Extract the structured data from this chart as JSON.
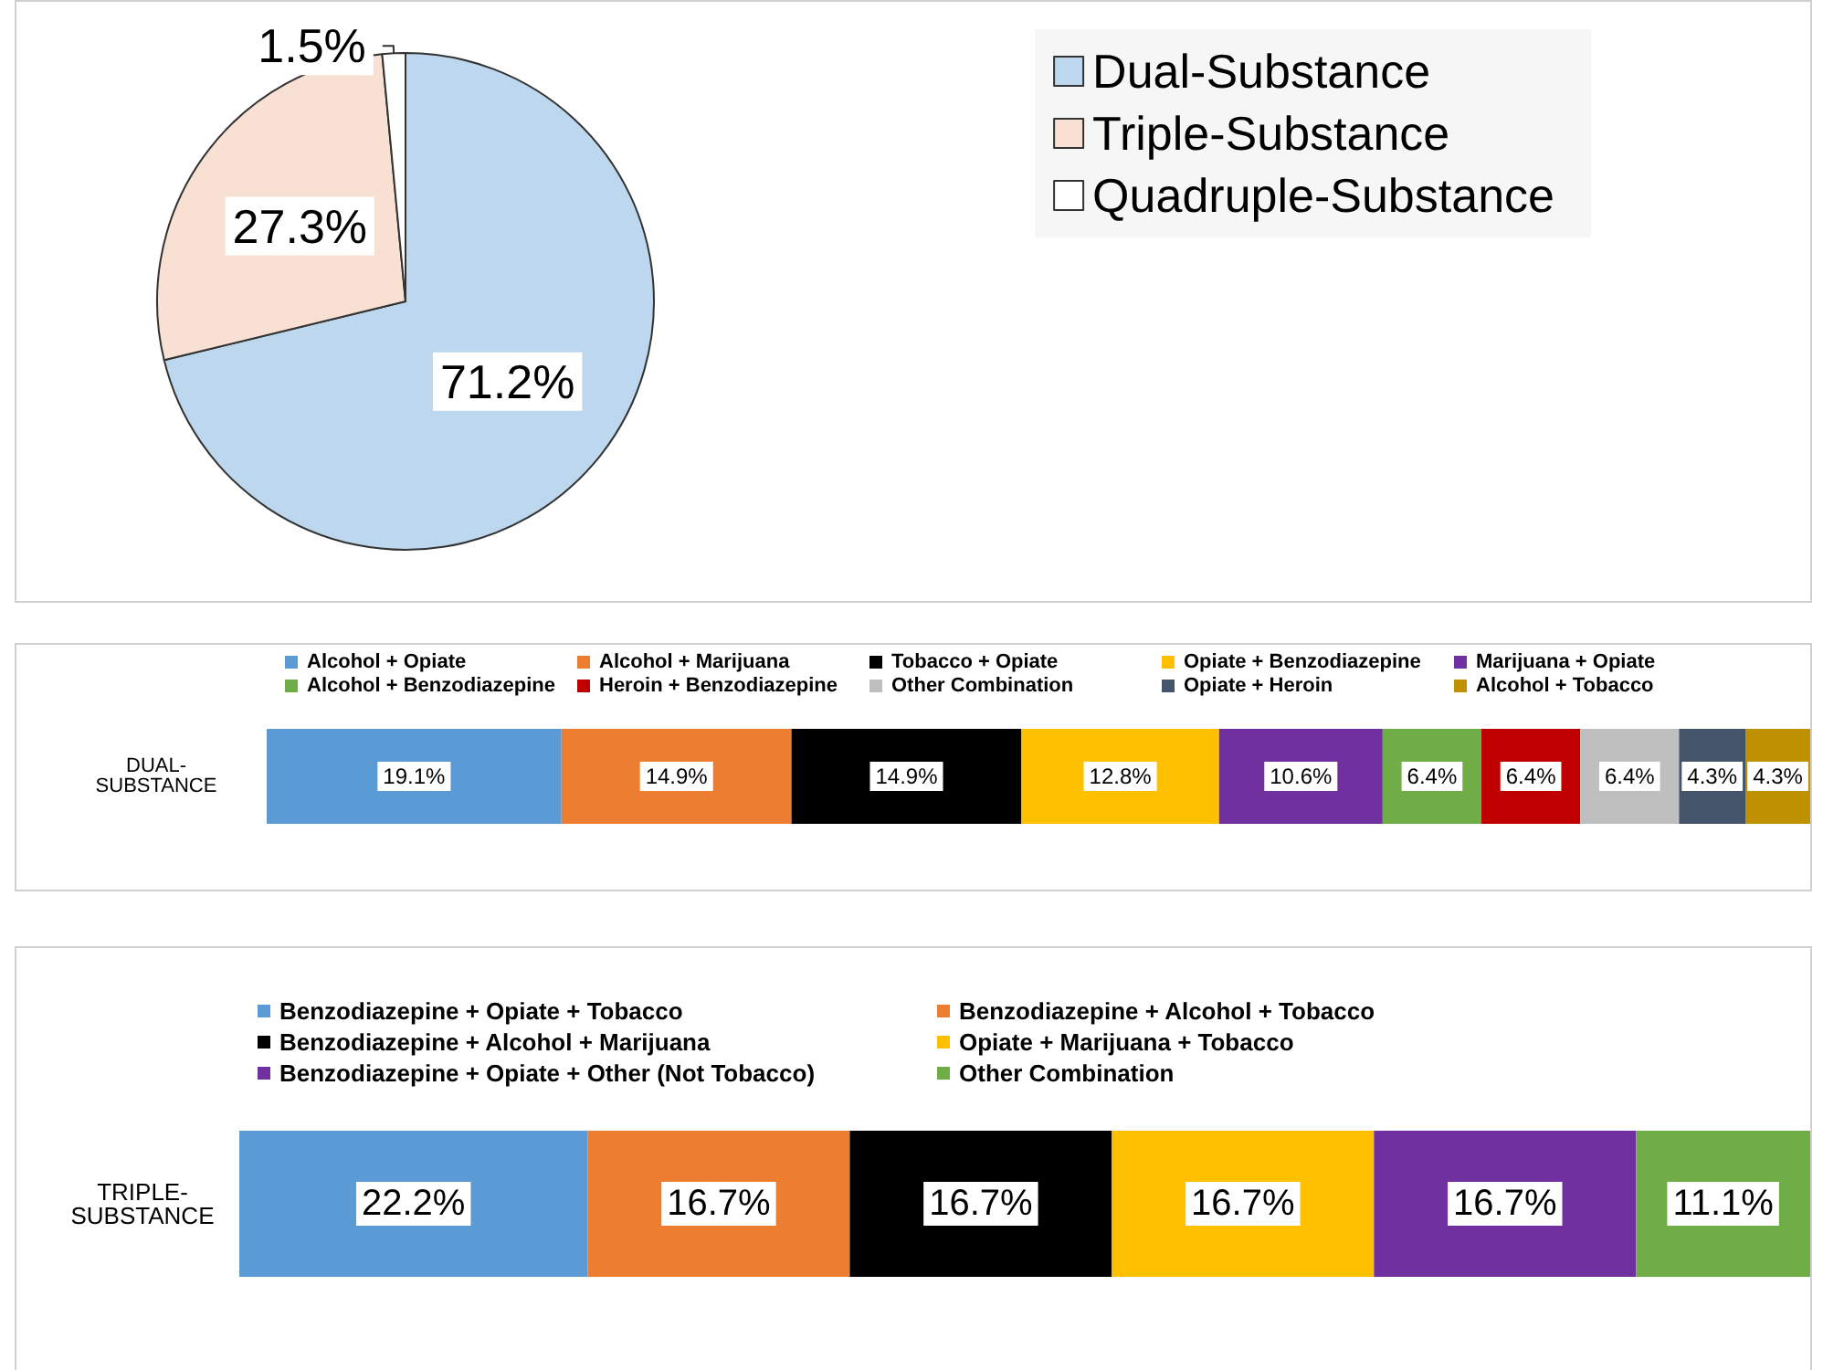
{
  "chart_data": [
    {
      "type": "pie",
      "categories": [
        "Dual-Substance",
        "Triple-Substance",
        "Quadruple-Substance"
      ],
      "values": [
        71.2,
        27.3,
        1.5
      ],
      "colors": [
        "#bdd7ee",
        "#f8e0d2",
        "#ffffff"
      ],
      "value_labels": [
        "71.2%",
        "27.3%",
        "1.5%"
      ],
      "legend": "right"
    },
    {
      "type": "bar",
      "orientation": "horizontal",
      "stacked": true,
      "categories": [
        "DUAL-SUBSTANCE"
      ],
      "xlim": [
        0,
        100
      ],
      "tick_labels": "y",
      "legend": "top",
      "series": [
        {
          "name": "Alcohol + Opiate",
          "color": "#5b9bd5",
          "values": [
            19.1
          ],
          "value_labels": [
            "19.1%"
          ]
        },
        {
          "name": "Alcohol + Marijuana",
          "color": "#ed7d31",
          "values": [
            14.9
          ],
          "value_labels": [
            "14.9%"
          ]
        },
        {
          "name": "Tobacco + Opiate",
          "color": "#000000",
          "values": [
            14.9
          ],
          "value_labels": [
            "14.9%"
          ]
        },
        {
          "name": "Opiate + Benzodiazepine",
          "color": "#ffc000",
          "values": [
            12.8
          ],
          "value_labels": [
            "12.8%"
          ]
        },
        {
          "name": "Marijuana + Opiate",
          "color": "#7030a0",
          "values": [
            10.6
          ],
          "value_labels": [
            "10.6%"
          ]
        },
        {
          "name": "Alcohol + Benzodiazepine",
          "color": "#70ad47",
          "values": [
            6.4
          ],
          "value_labels": [
            "6.4%"
          ]
        },
        {
          "name": "Heroin + Benzodiazepine",
          "color": "#c00000",
          "values": [
            6.4
          ],
          "value_labels": [
            "6.4%"
          ]
        },
        {
          "name": "Other Combination",
          "color": "#bfbfbf",
          "values": [
            6.4
          ],
          "value_labels": [
            "6.4%"
          ]
        },
        {
          "name": "Opiate + Heroin",
          "color": "#44546a",
          "values": [
            4.3
          ],
          "value_labels": [
            "4.3%"
          ]
        },
        {
          "name": "Alcohol + Tobacco",
          "color": "#bf9000",
          "values": [
            4.3
          ],
          "value_labels": [
            "4.3%"
          ]
        }
      ]
    },
    {
      "type": "bar",
      "orientation": "horizontal",
      "stacked": true,
      "categories": [
        "TRIPLE-SUBSTANCE"
      ],
      "xlim": [
        0,
        100.1
      ],
      "tick_labels": "y",
      "legend": "top",
      "series": [
        {
          "name": "Benzodiazepine + Opiate + Tobacco",
          "color": "#5b9bd5",
          "values": [
            22.2
          ],
          "value_labels": [
            "22.2%"
          ]
        },
        {
          "name": "Benzodiazepine + Alcohol + Tobacco",
          "color": "#ed7d31",
          "values": [
            16.7
          ],
          "value_labels": [
            "16.7%"
          ]
        },
        {
          "name": "Benzodiazepine + Alcohol + Marijuana",
          "color": "#000000",
          "values": [
            16.7
          ],
          "value_labels": [
            "16.7%"
          ]
        },
        {
          "name": "Opiate + Marijuana + Tobacco",
          "color": "#ffc000",
          "values": [
            16.7
          ],
          "value_labels": [
            "16.7%"
          ]
        },
        {
          "name": "Benzodiazepine + Opiate + Other (Not Tobacco)",
          "color": "#7030a0",
          "values": [
            16.7
          ],
          "value_labels": [
            "16.7%"
          ]
        },
        {
          "name": "Other Combination",
          "color": "#70ad47",
          "values": [
            11.1
          ],
          "value_labels": [
            "11.1%"
          ]
        }
      ]
    }
  ]
}
